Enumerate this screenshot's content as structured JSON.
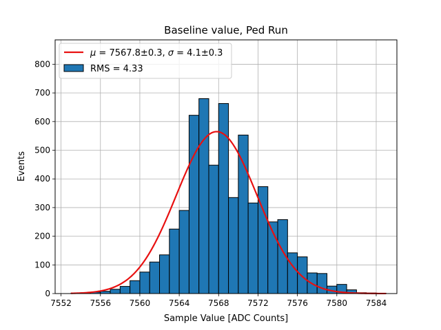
{
  "chart_data": {
    "type": "bar",
    "title": "Baseline value, Ped Run",
    "xlabel": "Sample Value [ADC Counts]",
    "ylabel": "Events",
    "xlim": [
      7551.4,
      7586.1
    ],
    "ylim": [
      0,
      885
    ],
    "xticks": [
      7552,
      7556,
      7560,
      7564,
      7568,
      7572,
      7576,
      7580,
      7584
    ],
    "yticks": [
      0,
      100,
      200,
      300,
      400,
      500,
      600,
      700,
      800
    ],
    "grid": true,
    "legend_position": "top-left",
    "colors": {
      "bars": "#1f77b4",
      "bar_edge": "#000000",
      "fit": "#e81010",
      "grid": "#b0b0b0"
    },
    "histogram": {
      "name": "RMS = 4.33",
      "bin_width": 1,
      "bin_edges_start": 7553,
      "counts": [
        1,
        2,
        5,
        8,
        15,
        25,
        45,
        75,
        110,
        135,
        225,
        290,
        622,
        680,
        448,
        663,
        335,
        553,
        316,
        373,
        250,
        258,
        142,
        128,
        72,
        70,
        26,
        32,
        13,
        3,
        2,
        1
      ]
    },
    "fit": {
      "name": "$\\mu = 7567.8$±0.3, $\\sigma = 4.1$±0.3",
      "mu": 7567.8,
      "sigma": 4.1,
      "amplitude": 565,
      "x_range": [
        7553,
        7585
      ]
    }
  }
}
